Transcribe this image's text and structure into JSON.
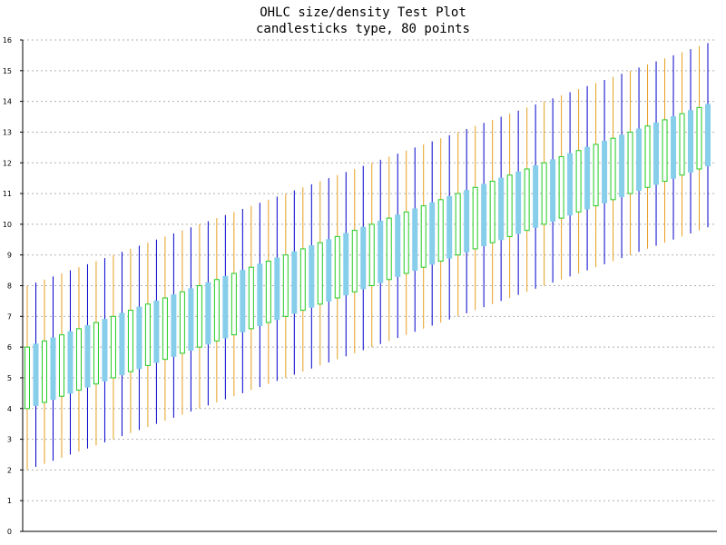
{
  "chart_data": {
    "type": "candlestick",
    "title": "OHLC size/density Test Plot",
    "subtitle": "candlesticks type, 80 points",
    "xlabel": "",
    "ylabel": "",
    "ylim": [
      0,
      16
    ],
    "y_ticks": [
      "0",
      "1",
      "2",
      "3",
      "4",
      "5",
      "6",
      "7",
      "8",
      "9",
      "10",
      "11",
      "12",
      "13",
      "14",
      "15",
      "16"
    ],
    "grid": "horizontal-dotted",
    "n_points": 80,
    "series_rule": {
      "open_start": 4.0,
      "open_step": 0.1,
      "close_start": 6.0,
      "close_step": 0.1,
      "high_start": 8.0,
      "high_step": 0.1,
      "low_start": 2.0,
      "low_step": 0.1,
      "falling_every": 2
    },
    "colors": {
      "rising_body_fill": "#ffffff",
      "rising_body_border": "#22cc22",
      "falling_body_fill": "#87ceeb",
      "wick_even": "#e6a020",
      "wick_odd": "#0000cc",
      "grid": "#b0b0b0",
      "axis": "#000000"
    }
  }
}
